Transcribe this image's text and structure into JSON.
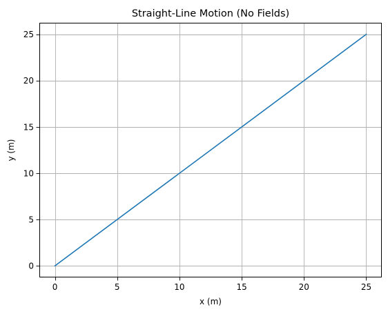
{
  "chart_data": {
    "type": "line",
    "title": "Straight-Line Motion (No Fields)",
    "xlabel": "x (m)",
    "ylabel": "y (m)",
    "xlim": [
      -1.25,
      26.25
    ],
    "ylim": [
      -1.25,
      26.25
    ],
    "xticks": [
      0,
      5,
      10,
      15,
      20,
      25
    ],
    "yticks": [
      0,
      5,
      10,
      15,
      20,
      25
    ],
    "grid": true,
    "legend": "none",
    "series": [
      {
        "color": "#1f77b4",
        "x": [
          0,
          25
        ],
        "y": [
          0,
          25
        ]
      }
    ]
  }
}
